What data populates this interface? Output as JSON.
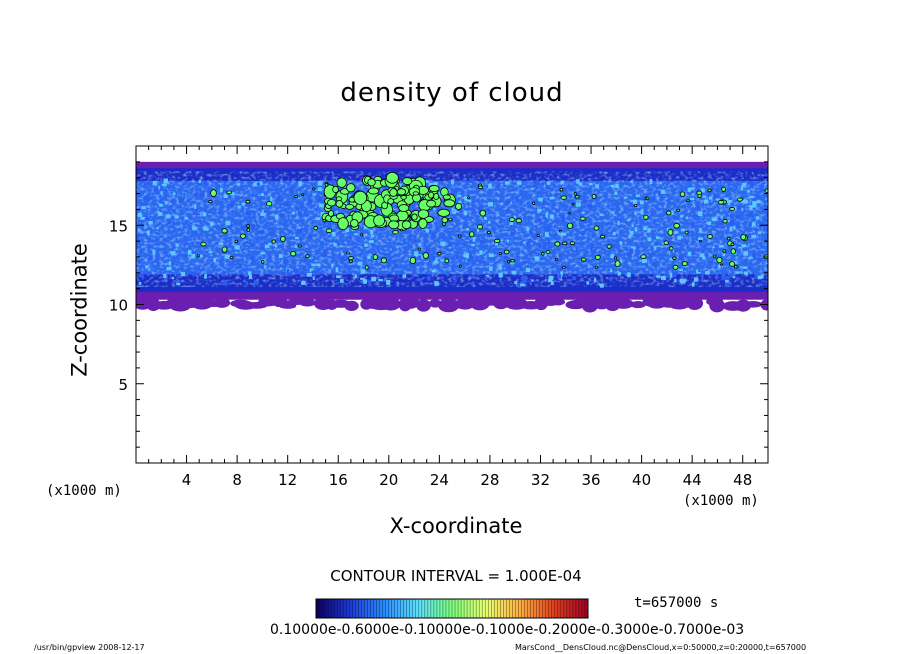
{
  "chart_data": {
    "type": "heatmap",
    "title": "density of cloud",
    "xlabel": "X-coordinate",
    "ylabel": "Z-coordinate",
    "x_unit": "(x1000 m)",
    "z_unit": "(x1000 m)",
    "xlim": [
      0,
      50
    ],
    "ylim": [
      0,
      20
    ],
    "x_ticks": [
      "4",
      "8",
      "12",
      "16",
      "20",
      "24",
      "28",
      "32",
      "36",
      "40",
      "44",
      "48"
    ],
    "y_ticks": [
      "5",
      "10",
      "15"
    ],
    "cloud_base_z": 10.3,
    "cloud_top_z": 19.0,
    "cloud_peak_x": 20,
    "cloud_peak_z": 16.5,
    "contour_interval": "CONTOUR INTERVAL = 1.000E-04",
    "time": "t=657000 s",
    "colorbar": {
      "labels_text": "0.10000e-0.6000e-0.10000e-0.1000e-0.2000e-0.3000e-0.7000e-03",
      "stops": [
        "#0a0060",
        "#1f3ad8",
        "#2a8cff",
        "#5ee0ff",
        "#7dff7d",
        "#e8ff70",
        "#ffb040",
        "#e04020",
        "#a00020"
      ]
    },
    "colors": {
      "edge": "#6a1fb0",
      "deep": "#1a2dc8",
      "mid": "#2f7bff",
      "light": "#5cc8ff",
      "green": "#66ff66"
    }
  },
  "footer": {
    "left": "/usr/bin/gpview   2008-12-17",
    "right": "MarsCond__DensCloud.nc@DensCloud,x=0:50000,z=0:20000,t=657000"
  }
}
